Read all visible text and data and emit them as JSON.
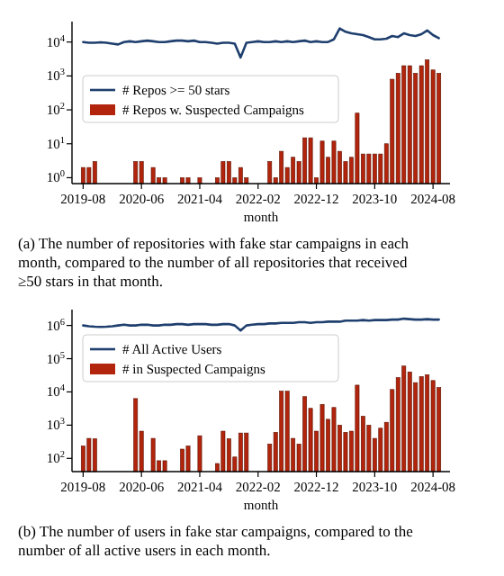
{
  "chart_data": [
    {
      "type": "bar",
      "xlabel": "month",
      "log": "y",
      "legend": "left",
      "grid": false,
      "categories": [
        "2019-08",
        null,
        null,
        null,
        null,
        null,
        null,
        null,
        null,
        null,
        "2020-06",
        null,
        null,
        null,
        null,
        null,
        null,
        null,
        null,
        null,
        "2021-04",
        null,
        null,
        null,
        null,
        null,
        null,
        null,
        null,
        null,
        "2022-02",
        null,
        null,
        null,
        null,
        null,
        null,
        null,
        null,
        null,
        "2022-12",
        null,
        null,
        null,
        null,
        null,
        null,
        null,
        null,
        null,
        "2023-10",
        null,
        null,
        null,
        null,
        null,
        null,
        null,
        null,
        null,
        "2024-08",
        null
      ],
      "ylim": [
        0.67,
        40000
      ],
      "yticks": [
        {
          "value": 1,
          "label": "10$^{0}$"
        },
        {
          "value": 10,
          "label": "10$^{1}$"
        },
        {
          "value": 100,
          "label": "10$^{2}$"
        },
        {
          "value": 1000,
          "label": "10$^{3}$"
        },
        {
          "value": 10000,
          "label": "10$^{4}$"
        }
      ],
      "series": [
        {
          "type": "line",
          "name": "# Repos >= 50 stars",
          "color": "#1f3f6e",
          "values": [
            10000,
            9500,
            9500,
            9800,
            9500,
            9000,
            8500,
            10000,
            10500,
            10000,
            10500,
            11000,
            10500,
            10000,
            10000,
            10500,
            11000,
            11000,
            10500,
            11000,
            10000,
            10000,
            9500,
            9000,
            9500,
            9500,
            9000,
            3500,
            9500,
            10000,
            10500,
            10000,
            10000,
            10500,
            10000,
            10500,
            10000,
            10500,
            11000,
            10000,
            10500,
            10000,
            10000,
            12000,
            25000,
            20000,
            18000,
            17000,
            16000,
            14000,
            12000,
            12000,
            12500,
            15000,
            14000,
            18000,
            16000,
            15000,
            17000,
            22000,
            16000,
            13000
          ]
        },
        {
          "name": "# Repos w. Suspected Campaigns",
          "color": "#b2240c",
          "values": [
            2,
            2,
            3,
            null,
            null,
            null,
            null,
            null,
            null,
            3,
            3,
            null,
            2,
            1,
            1,
            null,
            null,
            1,
            1,
            null,
            1,
            null,
            null,
            1,
            3,
            3,
            1,
            2,
            1,
            null,
            null,
            null,
            3,
            1,
            6,
            2,
            4,
            3,
            15,
            15,
            1,
            12,
            4,
            12,
            6,
            3,
            4,
            80,
            5,
            5,
            5,
            5,
            10,
            800,
            1200,
            2000,
            2000,
            1200,
            2000,
            3000,
            1500,
            1200
          ]
        }
      ],
      "annotations": [
        "(a) The number of repositories with fake star campaigns in each month, compared to the number of all repositories that received ≥50 stars in that month."
      ]
    },
    {
      "type": "bar",
      "xlabel": "month",
      "log": "y",
      "legend": "top left",
      "grid": false,
      "categories": [
        "2019-08",
        null,
        null,
        null,
        null,
        null,
        null,
        null,
        null,
        null,
        "2020-06",
        null,
        null,
        null,
        null,
        null,
        null,
        null,
        null,
        null,
        "2021-04",
        null,
        null,
        null,
        null,
        null,
        null,
        null,
        null,
        null,
        "2022-02",
        null,
        null,
        null,
        null,
        null,
        null,
        null,
        null,
        null,
        "2022-12",
        null,
        null,
        null,
        null,
        null,
        null,
        null,
        null,
        null,
        "2023-10",
        null,
        null,
        null,
        null,
        null,
        null,
        null,
        null,
        null,
        "2024-08",
        null
      ],
      "ylim": [
        40,
        3000000
      ],
      "yticks": [
        {
          "value": 100,
          "label": "10$^{2}$"
        },
        {
          "value": 1000,
          "label": "10$^{3}$"
        },
        {
          "value": 10000,
          "label": "10$^{4}$"
        },
        {
          "value": 100000,
          "label": "10$^{5}$"
        },
        {
          "value": 1000000,
          "label": "10$^{6}$"
        }
      ],
      "series": [
        {
          "type": "line",
          "name": "# All Active Users",
          "color": "#1f3f6e",
          "values": [
            1000000,
            950000,
            920000,
            900000,
            920000,
            950000,
            1000000,
            1050000,
            1000000,
            1000000,
            1050000,
            1050000,
            1000000,
            1000000,
            1050000,
            1050000,
            1100000,
            1100000,
            1050000,
            1100000,
            1100000,
            1100000,
            1050000,
            1050000,
            1100000,
            1100000,
            1000000,
            700000,
            1000000,
            1050000,
            1100000,
            1100000,
            1150000,
            1150000,
            1200000,
            1200000,
            1200000,
            1250000,
            1250000,
            1200000,
            1250000,
            1250000,
            1300000,
            1300000,
            1300000,
            1400000,
            1400000,
            1400000,
            1450000,
            1400000,
            1450000,
            1450000,
            1450000,
            1500000,
            1500000,
            1600000,
            1550000,
            1500000,
            1500000,
            1550000,
            1500000,
            1500000
          ]
        },
        {
          "name": "# in Suspected Campaigns",
          "color": "#b2240c",
          "values": [
            235,
            400,
            390,
            null,
            null,
            null,
            null,
            null,
            null,
            6300,
            660,
            null,
            400,
            85,
            85,
            null,
            null,
            190,
            235,
            null,
            480,
            null,
            null,
            70,
            660,
            390,
            110,
            580,
            580,
            null,
            null,
            null,
            270,
            610,
            10500,
            10500,
            400,
            270,
            7200,
            3200,
            660,
            4200,
            1500,
            3400,
            1000,
            610,
            660,
            16000,
            1850,
            1000,
            400,
            810,
            1220,
            11800,
            27000,
            60000,
            40000,
            19000,
            29000,
            33000,
            22000,
            13500
          ]
        }
      ],
      "annotations": [
        "(b) The number of users in fake star campaigns, compared to the number of all active users in each month."
      ]
    }
  ]
}
